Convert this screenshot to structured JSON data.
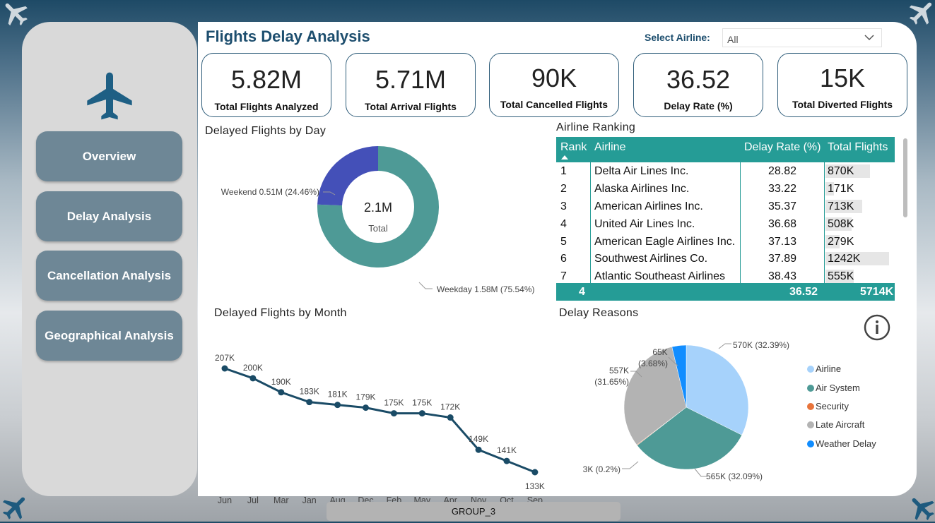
{
  "header": {
    "title": "Flights Delay Analysis",
    "select_label": "Select Airline:",
    "select_value": "All"
  },
  "nav": [
    {
      "label": "Overview"
    },
    {
      "label": "Delay Analysis"
    },
    {
      "label": "Cancellation Analysis"
    },
    {
      "label": "Geographical Analysis"
    }
  ],
  "kpis": [
    {
      "value": "5.82M",
      "label": "Total Flights Analyzed"
    },
    {
      "value": "5.71M",
      "label": "Total Arrival Flights"
    },
    {
      "value": "90K",
      "label": "Total Cancelled Flights"
    },
    {
      "value": "36.52",
      "label": "Delay Rate (%)"
    },
    {
      "value": "15K",
      "label": "Total Diverted Flights"
    }
  ],
  "day_chart": {
    "title": "Delayed Flights by Day",
    "center_value": "2.1M",
    "center_label": "Total",
    "slices": [
      {
        "name": "Weekday",
        "value": 1.58,
        "label": "Weekday 1.58M (75.54%)",
        "color": "#4e9a96"
      },
      {
        "name": "Weekend",
        "value": 0.51,
        "label": "Weekend 0.51M (24.46%)",
        "color": "#4450b8"
      }
    ]
  },
  "ranking": {
    "title": "Airline Ranking",
    "columns": [
      "Rank",
      "Airline",
      "Delay Rate (%)",
      "Total Flights"
    ],
    "rows": [
      {
        "rank": "1",
        "airline": "Delta Air Lines Inc.",
        "rate": "28.82",
        "flights": "870K",
        "flights_num": 870
      },
      {
        "rank": "2",
        "airline": "Alaska Airlines Inc.",
        "rate": "33.22",
        "flights": "171K",
        "flights_num": 171
      },
      {
        "rank": "3",
        "airline": "American Airlines Inc.",
        "rate": "35.37",
        "flights": "713K",
        "flights_num": 713
      },
      {
        "rank": "4",
        "airline": "United Air Lines Inc.",
        "rate": "36.68",
        "flights": "508K",
        "flights_num": 508
      },
      {
        "rank": "5",
        "airline": "American Eagle Airlines Inc.",
        "rate": "37.13",
        "flights": "279K",
        "flights_num": 279
      },
      {
        "rank": "6",
        "airline": "Southwest Airlines Co.",
        "rate": "37.89",
        "flights": "1242K",
        "flights_num": 1242
      },
      {
        "rank": "7",
        "airline": "Atlantic Southeast Airlines",
        "rate": "38.43",
        "flights": "555K",
        "flights_num": 555
      }
    ],
    "total": {
      "rank": "4",
      "rate": "36.52",
      "flights": "5714K"
    }
  },
  "month_chart": {
    "title": "Delayed Flights by Month",
    "categories": [
      "Jun",
      "Jul",
      "Mar",
      "Jan",
      "Aug",
      "Dec",
      "Feb",
      "May",
      "Apr",
      "Nov",
      "Oct",
      "Sep"
    ],
    "values": [
      207,
      200,
      190,
      183,
      181,
      179,
      175,
      175,
      172,
      149,
      141,
      133
    ],
    "labels": [
      "207K",
      "200K",
      "190K",
      "183K",
      "181K",
      "179K",
      "175K",
      "175K",
      "172K",
      "149K",
      "141K",
      "133K"
    ],
    "color": "#1a4b66"
  },
  "reasons_chart": {
    "title": "Delay Reasons",
    "slices": [
      {
        "name": "Airline",
        "value": 570,
        "pct": 32.39,
        "label": "570K (32.39%)",
        "color": "#a6d2fb"
      },
      {
        "name": "Air System",
        "value": 565,
        "pct": 32.09,
        "label": "565K (32.09%)",
        "color": "#4e9a96"
      },
      {
        "name": "Security",
        "value": 3,
        "pct": 0.2,
        "label": "3K (0.2%)",
        "color": "#e8743b"
      },
      {
        "name": "Late Aircraft",
        "value": 557,
        "pct": 31.65,
        "label": "557K (31.65%)",
        "color": "#b3b3b3"
      },
      {
        "name": "Weather Delay",
        "value": 65,
        "pct": 3.68,
        "label": "65K (3.68%)",
        "color": "#118dff"
      }
    ]
  },
  "chart_data": [
    {
      "type": "pie",
      "title": "Delayed Flights by Day",
      "categories": [
        "Weekday",
        "Weekend"
      ],
      "values": [
        1.58,
        0.51
      ]
    },
    {
      "type": "line",
      "title": "Delayed Flights by Month",
      "categories": [
        "Jun",
        "Jul",
        "Mar",
        "Jan",
        "Aug",
        "Dec",
        "Feb",
        "May",
        "Apr",
        "Nov",
        "Oct",
        "Sep"
      ],
      "values": [
        207,
        200,
        190,
        183,
        181,
        179,
        175,
        175,
        172,
        149,
        141,
        133
      ]
    },
    {
      "type": "pie",
      "title": "Delay Reasons",
      "categories": [
        "Airline",
        "Air System",
        "Security",
        "Late Aircraft",
        "Weather Delay"
      ],
      "values": [
        570,
        565,
        3,
        557,
        65
      ]
    },
    {
      "type": "table",
      "title": "Airline Ranking",
      "columns": [
        "Rank",
        "Airline",
        "Delay Rate (%)",
        "Total Flights"
      ]
    }
  ],
  "footer": {
    "label": "GROUP_3"
  }
}
